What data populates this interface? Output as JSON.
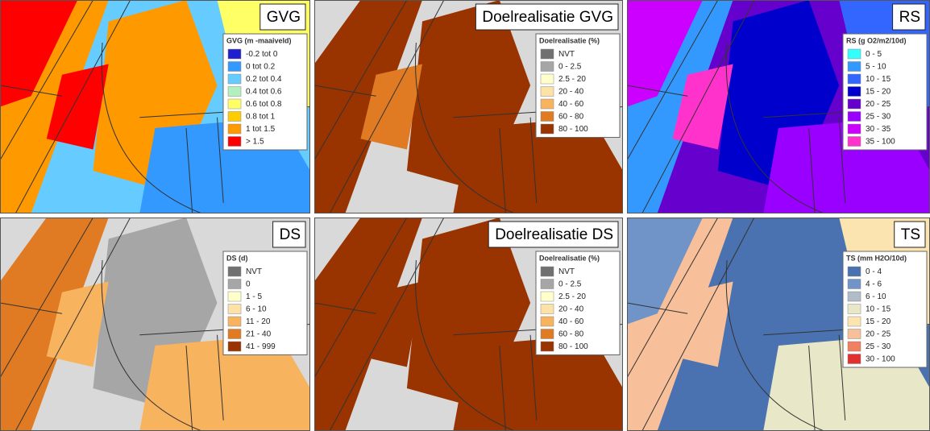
{
  "panels": [
    {
      "title": "GVG",
      "legend_title": "GVG (m -maaiveld)",
      "legend": [
        {
          "label": "-0.2 tot 0",
          "color": "#1f1fd0"
        },
        {
          "label": "0 tot 0.2",
          "color": "#3399ff"
        },
        {
          "label": "0.2 tot 0.4",
          "color": "#66ccff"
        },
        {
          "label": "0.4 tot 0.6",
          "color": "#b3f0c0"
        },
        {
          "label": "0.6 tot 0.8",
          "color": "#ffff66"
        },
        {
          "label": "0.8 tot 1",
          "color": "#ffcc00"
        },
        {
          "label": "1 tot 1.5",
          "color": "#ff9900"
        },
        {
          "label": "> 1.5",
          "color": "#ff0000"
        }
      ]
    },
    {
      "title": "Doelrealisatie GVG",
      "legend_title": "Doelrealisatie (%)",
      "legend": [
        {
          "label": "NVT",
          "color": "#707070"
        },
        {
          "label": "0 - 2.5",
          "color": "#a6a6a6"
        },
        {
          "label": "2.5 - 20",
          "color": "#ffffcc"
        },
        {
          "label": "20 - 40",
          "color": "#fde2a8"
        },
        {
          "label": "40 - 60",
          "color": "#f8b35e"
        },
        {
          "label": "60 - 80",
          "color": "#e07b23"
        },
        {
          "label": "80 - 100",
          "color": "#993300"
        }
      ]
    },
    {
      "title": "RS",
      "legend_title": "RS (g O2/m2/10d)",
      "legend": [
        {
          "label": "0 - 5",
          "color": "#33ffff"
        },
        {
          "label": "5 - 10",
          "color": "#3399ff"
        },
        {
          "label": "10 - 15",
          "color": "#3366ff"
        },
        {
          "label": "15 - 20",
          "color": "#0000cc"
        },
        {
          "label": "20 - 25",
          "color": "#6600cc"
        },
        {
          "label": "25 - 30",
          "color": "#9900ff"
        },
        {
          "label": "30 - 35",
          "color": "#cc00ff"
        },
        {
          "label": "35 - 100",
          "color": "#ff33cc"
        }
      ]
    },
    {
      "title": "DS",
      "legend_title": "DS (d)",
      "legend": [
        {
          "label": "NVT",
          "color": "#707070"
        },
        {
          "label": "0",
          "color": "#a6a6a6"
        },
        {
          "label": "1 - 5",
          "color": "#ffffcc"
        },
        {
          "label": "6 - 10",
          "color": "#fde2a8"
        },
        {
          "label": "11 - 20",
          "color": "#f8b35e"
        },
        {
          "label": "21 - 40",
          "color": "#e07b23"
        },
        {
          "label": "41 - 999",
          "color": "#993300"
        }
      ]
    },
    {
      "title": "Doelrealisatie DS",
      "legend_title": "Doelrealisatie (%)",
      "legend": [
        {
          "label": "NVT",
          "color": "#707070"
        },
        {
          "label": "0 - 2.5",
          "color": "#a6a6a6"
        },
        {
          "label": "2.5 - 20",
          "color": "#ffffcc"
        },
        {
          "label": "20 - 40",
          "color": "#fde2a8"
        },
        {
          "label": "40 - 60",
          "color": "#f8b35e"
        },
        {
          "label": "60 - 80",
          "color": "#e07b23"
        },
        {
          "label": "80 - 100",
          "color": "#993300"
        }
      ]
    },
    {
      "title": "TS",
      "legend_title": "TS (mm H2O/10d)",
      "legend": [
        {
          "label": "0 - 4",
          "color": "#4a72b0"
        },
        {
          "label": "4 - 6",
          "color": "#7094c8"
        },
        {
          "label": "6 - 10",
          "color": "#b0bcc8"
        },
        {
          "label": "10 - 15",
          "color": "#e8e8c8"
        },
        {
          "label": "15 - 20",
          "color": "#fce4b0"
        },
        {
          "label": "20 - 25",
          "color": "#f7c09a"
        },
        {
          "label": "25 - 30",
          "color": "#f08060"
        },
        {
          "label": "30 - 100",
          "color": "#e03030"
        }
      ]
    }
  ]
}
